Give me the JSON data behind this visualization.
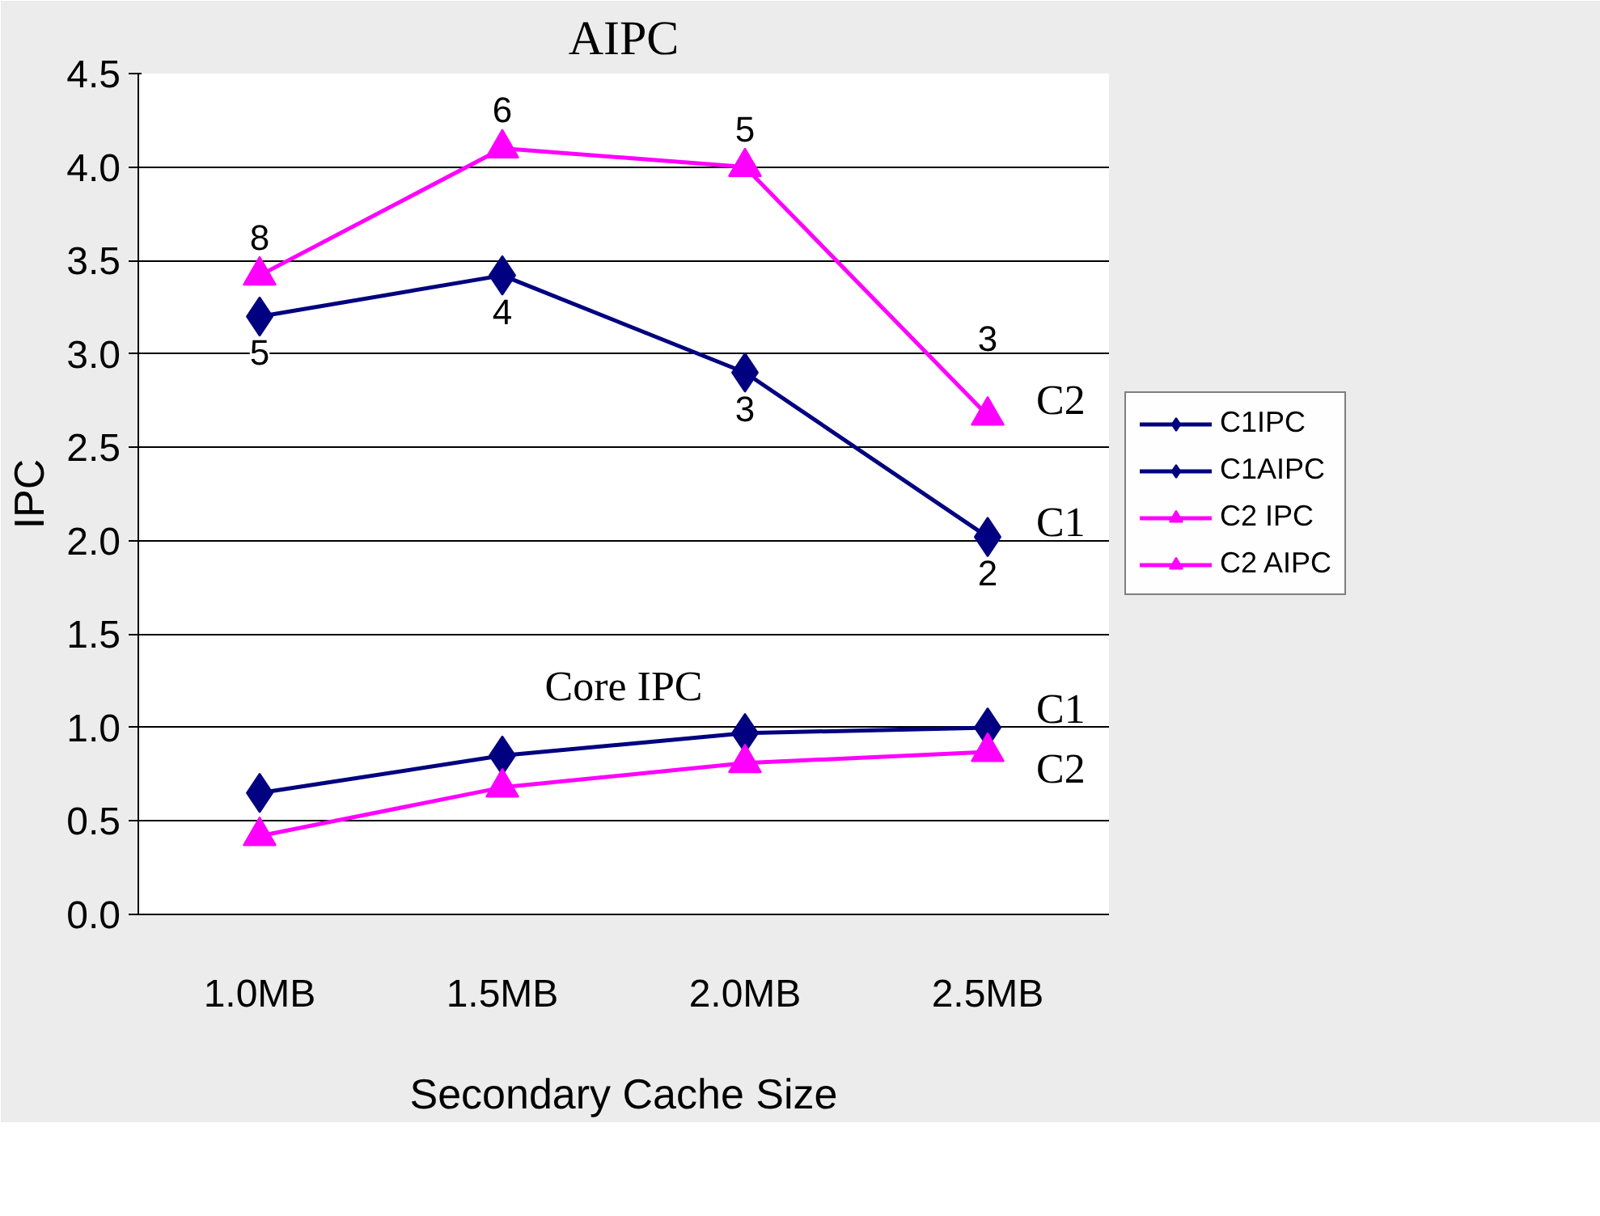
{
  "chart_data": {
    "type": "line",
    "title": "AIPC",
    "xlabel": "Secondary Cache Size",
    "ylabel": "IPC",
    "categories": [
      "1.0MB",
      "1.5MB",
      "2.0MB",
      "2.5MB"
    ],
    "ylim": [
      0,
      4.5
    ],
    "yticks": [
      {
        "value": 0,
        "label": "0.0"
      },
      {
        "value": 0.5,
        "label": "0.5"
      },
      {
        "value": 1,
        "label": "1.0"
      },
      {
        "value": 1.5,
        "label": "1.5"
      },
      {
        "value": 2,
        "label": "2.0"
      },
      {
        "value": 2.5,
        "label": "2.5"
      },
      {
        "value": 3,
        "label": "3.0"
      },
      {
        "value": 3.5,
        "label": "3.5"
      },
      {
        "value": 4,
        "label": "4.0"
      },
      {
        "value": 4.5,
        "label": "4.5"
      }
    ],
    "grid": "y",
    "legend": "right",
    "series": [
      {
        "name": "C1IPC",
        "color": "#000080",
        "marker": "diamond",
        "values": [
          0.65,
          0.85,
          0.97,
          1.0
        ]
      },
      {
        "name": "C1AIPC",
        "color": "#000080",
        "marker": "diamond",
        "values": [
          3.2,
          3.42,
          2.9,
          2.02
        ]
      },
      {
        "name": "C2 IPC",
        "color": "#ff00ff",
        "marker": "triangle",
        "values": [
          0.42,
          0.68,
          0.81,
          0.87
        ]
      },
      {
        "name": "C2 AIPC",
        "color": "#ff00ff",
        "marker": "triangle",
        "values": [
          3.42,
          4.1,
          4.0,
          2.67
        ]
      }
    ],
    "annotations": [
      "Core IPC",
      "C2",
      "C1",
      "C1",
      "C2",
      {
        "text": "5",
        "x": "1.0MB",
        "y": 3.2
      },
      {
        "text": "4",
        "x": "1.5MB",
        "y": 3.42
      },
      {
        "text": "3",
        "x": "2.0MB",
        "y": 2.9
      },
      {
        "text": "2",
        "x": "2.5MB",
        "y": 2.02
      },
      {
        "text": "8",
        "x": "1.0MB",
        "y": 3.42
      },
      {
        "text": "6",
        "x": "1.5MB",
        "y": 4.1
      },
      {
        "text": "5",
        "x": "2.0MB",
        "y": 4.0
      },
      {
        "text": "3",
        "x": "2.5MB",
        "y": 2.67
      }
    ]
  }
}
